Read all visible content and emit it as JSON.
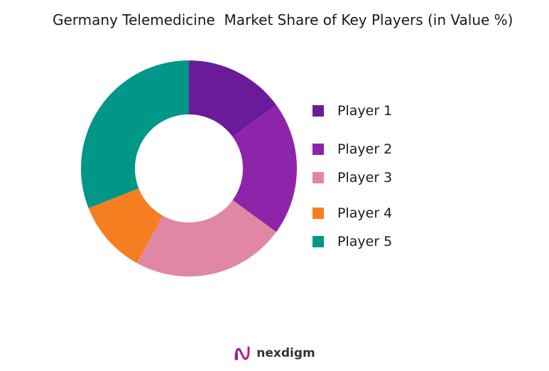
{
  "chart_data": {
    "type": "donut",
    "title": "Germany Telemedicine  Market Share of Key Players (in Value %)",
    "categories": [
      "Player 1",
      "Player 2",
      "Player 3",
      "Player 4",
      "Player 5"
    ],
    "values": [
      15,
      20,
      23,
      11,
      31
    ],
    "unit": "%",
    "colors": [
      "#6a1b9a",
      "#8e24aa",
      "#e088a3",
      "#f57f20",
      "#009688"
    ],
    "start_angle_deg": 0,
    "direction": "clockwise",
    "legend_position": "right"
  },
  "footer": {
    "brand": "nexdigm",
    "logo_icon": "nexdigm-logo-icon"
  }
}
